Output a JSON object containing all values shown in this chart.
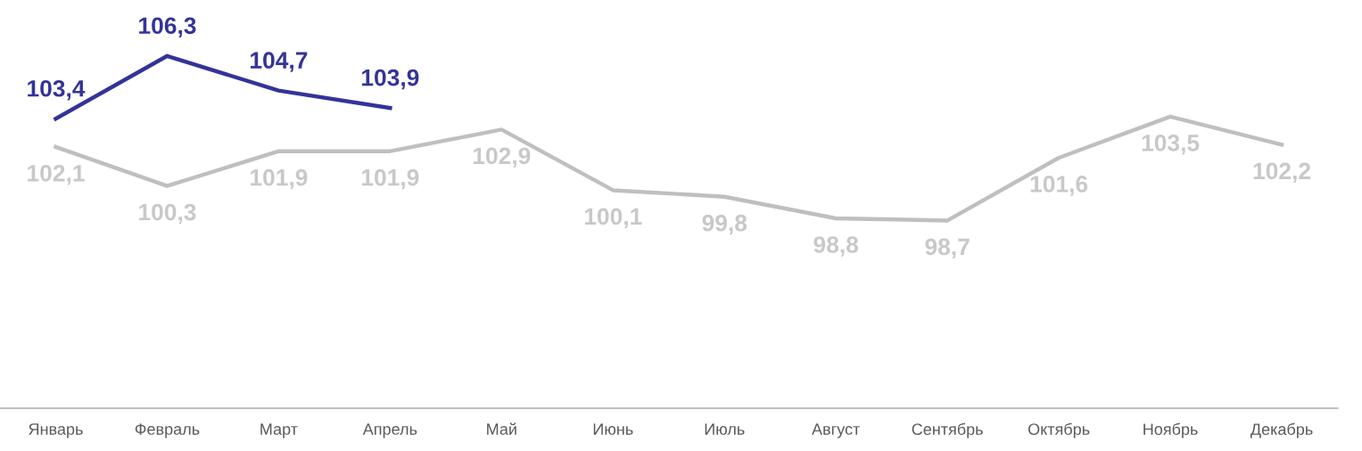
{
  "chart_data": {
    "type": "line",
    "categories": [
      "Январь",
      "Февраль",
      "Март",
      "Апрель",
      "Май",
      "Июнь",
      "Июль",
      "Август",
      "Сентябрь",
      "Октябрь",
      "Ноябрь",
      "Декабрь"
    ],
    "series": [
      {
        "color": "#333399",
        "values": [
          103.4,
          106.3,
          104.7,
          103.9,
          null,
          null,
          null,
          null,
          null,
          null,
          null,
          null
        ],
        "value_labels": [
          "103,4",
          "106,3",
          "104,7",
          "103,9",
          null,
          null,
          null,
          null,
          null,
          null,
          null,
          null
        ]
      },
      {
        "color": "#bfbfbf",
        "values": [
          102.1,
          100.3,
          101.9,
          101.9,
          102.9,
          100.1,
          99.8,
          98.8,
          98.7,
          101.6,
          103.5,
          102.2
        ],
        "value_labels": [
          "102,1",
          "100,3",
          "101,9",
          "101,9",
          "102,9",
          "100,1",
          "99,8",
          "98,8",
          "98,7",
          "101,6",
          "103,5",
          "102,2"
        ]
      }
    ],
    "tick_labels": "x",
    "grid": false,
    "legend": false,
    "marker": "none",
    "line_style": "solid"
  }
}
